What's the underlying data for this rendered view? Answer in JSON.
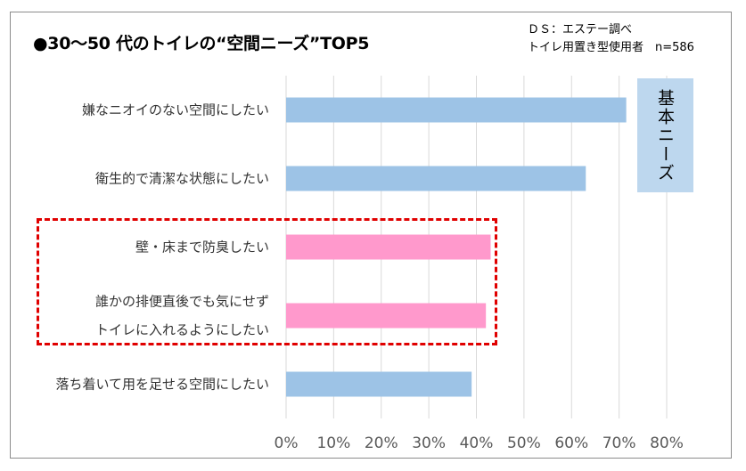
{
  "header": {
    "title": "●30～50 代のトイレの“空間ニーズ”TOP5",
    "source_line1": "ＤＳ：エステー調べ",
    "source_line2": "トイレ用置き型使用者　n=586"
  },
  "annotation": {
    "label": "基本ニーズ"
  },
  "chart_data": {
    "type": "bar",
    "orientation": "horizontal",
    "title": "●30～50 代のトイレの“空間ニーズ”TOP5",
    "categories": [
      [
        "嫌なニオイのない空間にしたい"
      ],
      [
        "衛生的で清潔な状態にしたい"
      ],
      [
        "壁・床まで防臭したい"
      ],
      [
        "誰かの排便直後でも気にせず",
        "トイレに入れるようにしたい"
      ],
      [
        "落ち着いて用を足せる空間にしたい"
      ]
    ],
    "values": [
      71.5,
      63,
      43,
      42,
      39
    ],
    "bar_colors": [
      "#9dc3e6",
      "#9dc3e6",
      "#ff99cc",
      "#ff99cc",
      "#9dc3e6"
    ],
    "xlim": [
      0,
      80
    ],
    "ticks": [
      0,
      10,
      20,
      30,
      40,
      50,
      60,
      70,
      80
    ],
    "tick_labels": [
      "0%",
      "10%",
      "20%",
      "30%",
      "40%",
      "50%",
      "60%",
      "70%",
      "80%"
    ],
    "grid": true,
    "gridline_color": "#d9d9d9",
    "highlight_color": "#e00000",
    "highlighted_categories": [
      2,
      3
    ]
  }
}
